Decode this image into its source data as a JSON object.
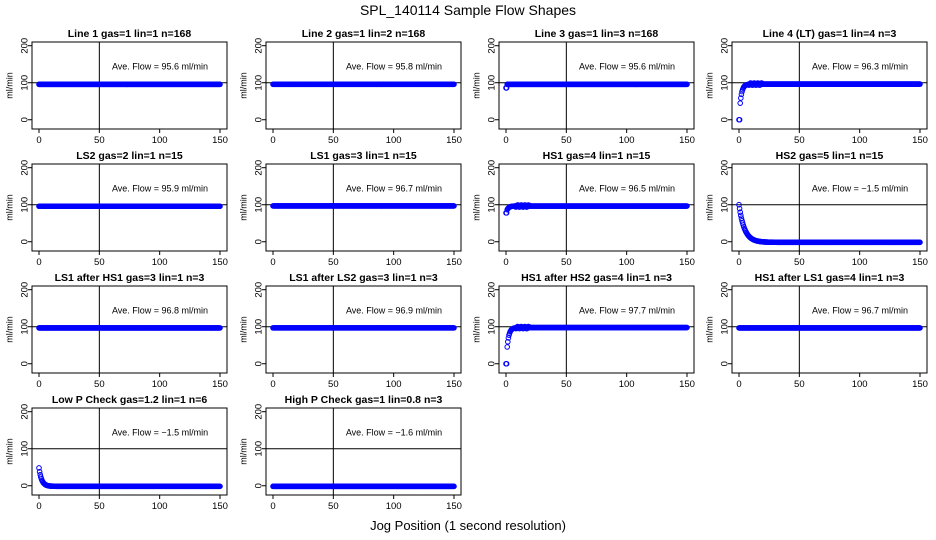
{
  "page": {
    "title": "SPL_140114  Sample Flow Shapes",
    "xlabel": "Jog Position (1 second resolution)"
  },
  "style": {
    "point_color": "#0000ff",
    "axis_color": "#000000"
  },
  "chart_data": [
    {
      "type": "scatter",
      "title": "Line 1 gas=1 lin=1 n=168",
      "annotation": "Ave. Flow = 95.6  ml/min",
      "ylabel": "ml/min",
      "xlim": [
        0,
        150
      ],
      "ylim": [
        -25,
        210
      ],
      "xticks": [
        0,
        50,
        100,
        150
      ],
      "yticks": [
        0,
        100,
        200
      ],
      "vline": 50,
      "hline": 100,
      "shape": "flat",
      "level": 95.6
    },
    {
      "type": "scatter",
      "title": "Line 2 gas=1 lin=2 n=168",
      "annotation": "Ave. Flow = 95.8  ml/min",
      "ylabel": "ml/min",
      "xlim": [
        0,
        150
      ],
      "ylim": [
        -25,
        210
      ],
      "xticks": [
        0,
        50,
        100,
        150
      ],
      "yticks": [
        0,
        100,
        200
      ],
      "vline": 50,
      "hline": 100,
      "shape": "flat",
      "level": 95.8
    },
    {
      "type": "scatter",
      "title": "Line 3 gas=1 lin=3 n=168",
      "annotation": "Ave. Flow = 95.6  ml/min",
      "ylabel": "ml/min",
      "xlim": [
        0,
        150
      ],
      "ylim": [
        -25,
        210
      ],
      "xticks": [
        0,
        50,
        100,
        150
      ],
      "yticks": [
        0,
        100,
        200
      ],
      "vline": 50,
      "hline": 100,
      "shape": "flat",
      "level": 95.6,
      "start": 86
    },
    {
      "type": "scatter",
      "title": "Line 4 (LT) gas=1 lin=4 n=3",
      "annotation": "Ave. Flow = 96.3  ml/min",
      "ylabel": "ml/min",
      "xlim": [
        0,
        150
      ],
      "ylim": [
        -25,
        210
      ],
      "xticks": [
        0,
        50,
        100,
        150
      ],
      "yticks": [
        0,
        100,
        200
      ],
      "vline": 50,
      "hline": 100,
      "shape": "rise",
      "level": 96.3,
      "start": 0
    },
    {
      "type": "scatter",
      "title": "LS2 gas=2 lin=1 n=15",
      "annotation": "Ave. Flow = 95.9  ml/min",
      "ylabel": "ml/min",
      "xlim": [
        0,
        150
      ],
      "ylim": [
        -25,
        210
      ],
      "xticks": [
        0,
        50,
        100,
        150
      ],
      "yticks": [
        0,
        100,
        200
      ],
      "vline": 50,
      "hline": 100,
      "shape": "flat",
      "level": 95.9
    },
    {
      "type": "scatter",
      "title": "LS1 gas=3 lin=1 n=15",
      "annotation": "Ave. Flow = 96.7  ml/min",
      "ylabel": "ml/min",
      "xlim": [
        0,
        150
      ],
      "ylim": [
        -25,
        210
      ],
      "xticks": [
        0,
        50,
        100,
        150
      ],
      "yticks": [
        0,
        100,
        200
      ],
      "vline": 50,
      "hline": 100,
      "shape": "flat",
      "level": 96.7
    },
    {
      "type": "scatter",
      "title": "HS1 gas=4 lin=1 n=15",
      "annotation": "Ave. Flow = 96.5  ml/min",
      "ylabel": "ml/min",
      "xlim": [
        0,
        150
      ],
      "ylim": [
        -25,
        210
      ],
      "xticks": [
        0,
        50,
        100,
        150
      ],
      "yticks": [
        0,
        100,
        200
      ],
      "vline": 50,
      "hline": 100,
      "shape": "rise",
      "level": 96.5,
      "start": 78
    },
    {
      "type": "scatter",
      "title": "HS2 gas=5 lin=1 n=15",
      "annotation": "Ave. Flow = −1.5  ml/min",
      "ylabel": "ml/min",
      "xlim": [
        0,
        150
      ],
      "ylim": [
        -25,
        210
      ],
      "xticks": [
        0,
        50,
        100,
        150
      ],
      "yticks": [
        0,
        100,
        200
      ],
      "vline": 50,
      "hline": 100,
      "shape": "decay",
      "level": -1.5,
      "start": 100
    },
    {
      "type": "scatter",
      "title": "LS1 after HS1 gas=3 lin=1 n=3",
      "annotation": "Ave. Flow = 96.8  ml/min",
      "ylabel": "ml/min",
      "xlim": [
        0,
        150
      ],
      "ylim": [
        -25,
        210
      ],
      "xticks": [
        0,
        50,
        100,
        150
      ],
      "yticks": [
        0,
        100,
        200
      ],
      "vline": 50,
      "hline": 100,
      "shape": "flat",
      "level": 96.8
    },
    {
      "type": "scatter",
      "title": "LS1 after LS2 gas=3 lin=1 n=3",
      "annotation": "Ave. Flow = 96.9  ml/min",
      "ylabel": "ml/min",
      "xlim": [
        0,
        150
      ],
      "ylim": [
        -25,
        210
      ],
      "xticks": [
        0,
        50,
        100,
        150
      ],
      "yticks": [
        0,
        100,
        200
      ],
      "vline": 50,
      "hline": 100,
      "shape": "flat",
      "level": 96.9
    },
    {
      "type": "scatter",
      "title": "HS1 after HS2 gas=4 lin=1 n=3",
      "annotation": "Ave. Flow = 97.7  ml/min",
      "ylabel": "ml/min",
      "xlim": [
        0,
        150
      ],
      "ylim": [
        -25,
        210
      ],
      "xticks": [
        0,
        50,
        100,
        150
      ],
      "yticks": [
        0,
        100,
        200
      ],
      "vline": 50,
      "hline": 100,
      "shape": "rise",
      "level": 97.7,
      "start": 0
    },
    {
      "type": "scatter",
      "title": "HS1 after LS1 gas=4 lin=1 n=3",
      "annotation": "Ave. Flow = 96.7  ml/min",
      "ylabel": "ml/min",
      "xlim": [
        0,
        150
      ],
      "ylim": [
        -25,
        210
      ],
      "xticks": [
        0,
        50,
        100,
        150
      ],
      "yticks": [
        0,
        100,
        200
      ],
      "vline": 50,
      "hline": 100,
      "shape": "flat",
      "level": 96.7
    },
    {
      "type": "scatter",
      "title": "Low P Check gas=1.2 lin=1 n=6",
      "annotation": "Ave. Flow = −1.5  ml/min",
      "ylabel": "ml/min",
      "xlim": [
        0,
        150
      ],
      "ylim": [
        -25,
        210
      ],
      "xticks": [
        0,
        50,
        100,
        150
      ],
      "yticks": [
        0,
        100,
        200
      ],
      "vline": 50,
      "hline": 100,
      "shape": "decay",
      "level": -1.5,
      "start": 48
    },
    {
      "type": "scatter",
      "title": "High P Check gas=1 lin=0.8 n=3",
      "annotation": "Ave. Flow = −1.6  ml/min",
      "ylabel": "ml/min",
      "xlim": [
        0,
        150
      ],
      "ylim": [
        -25,
        210
      ],
      "xticks": [
        0,
        50,
        100,
        150
      ],
      "yticks": [
        0,
        100,
        200
      ],
      "vline": 50,
      "hline": 100,
      "shape": "flat",
      "level": -1.6
    }
  ]
}
